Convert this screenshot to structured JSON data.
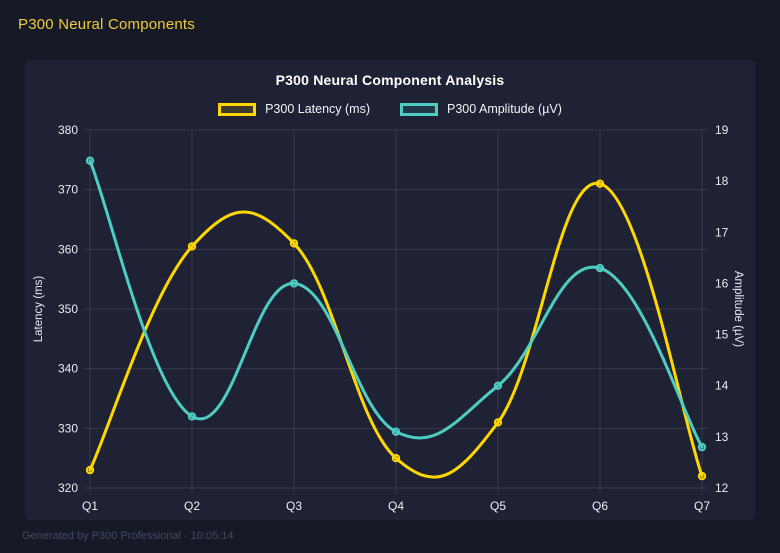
{
  "header": {
    "title": "P300 Neural Components"
  },
  "colors": {
    "header_accent": "#EFC93C",
    "latency_series": "#FFD700",
    "amplitude_series": "#4ECDC4",
    "panel_background": "#1E2234",
    "page_background": "#161A27"
  },
  "chart": {
    "title": "P300 Neural Component Analysis"
  },
  "chart_data": {
    "type": "line",
    "title": "P300 Neural Component Analysis",
    "categories": [
      "Q1",
      "Q2",
      "Q3",
      "Q4",
      "Q5",
      "Q6",
      "Q7"
    ],
    "series": [
      {
        "name": "P300 Latency (ms)",
        "axis": "left",
        "color": "#FFD700",
        "values": [
          323,
          360.5,
          361,
          325,
          331,
          371,
          322
        ]
      },
      {
        "name": "P300 Amplitude (µV)",
        "axis": "right",
        "color": "#4ECDC4",
        "values": [
          18.4,
          13.4,
          16,
          13.1,
          14,
          16.3,
          12.8
        ]
      }
    ],
    "axes": {
      "left": {
        "label": "Latency (ms)",
        "min": 320,
        "max": 380,
        "step": 10
      },
      "right": {
        "label": "Amplitude (µV)",
        "min": 12,
        "max": 19,
        "step": 1
      }
    },
    "grid": true,
    "legend_position": "top",
    "curve": "smooth"
  },
  "footer": {
    "text": "Generated by P300 Professional - 10:05:14"
  }
}
